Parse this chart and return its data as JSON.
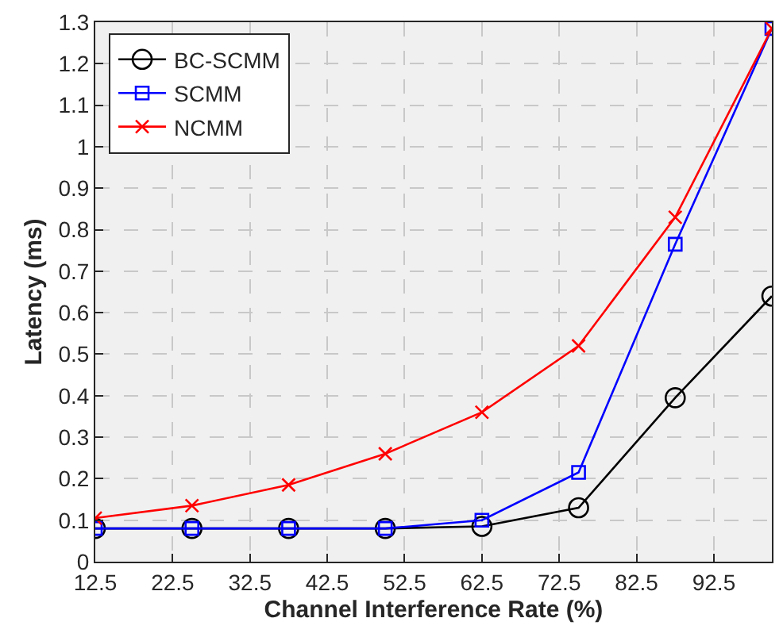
{
  "chart_data": {
    "type": "line",
    "xlabel": "Channel Interference Rate (%)",
    "ylabel": "Latency (ms)",
    "x": [
      12.5,
      25,
      37.5,
      50,
      62.5,
      75,
      87.5,
      100
    ],
    "series": [
      {
        "name": "BC-SCMM",
        "color": "#000000",
        "marker": "circle",
        "values": [
          0.08,
          0.08,
          0.08,
          0.08,
          0.085,
          0.13,
          0.395,
          0.64
        ]
      },
      {
        "name": "SCMM",
        "color": "#0000ff",
        "marker": "square",
        "values": [
          0.08,
          0.08,
          0.08,
          0.08,
          0.1,
          0.215,
          0.765,
          1.285
        ]
      },
      {
        "name": "NCMM",
        "color": "#ff0000",
        "marker": "cross",
        "values": [
          0.105,
          0.135,
          0.185,
          0.26,
          0.36,
          0.52,
          0.83,
          1.285
        ]
      }
    ],
    "xlim": [
      12.5,
      100
    ],
    "xticks": [
      12.5,
      22.5,
      32.5,
      42.5,
      52.5,
      62.5,
      72.5,
      82.5,
      92.5
    ],
    "ylim": [
      0,
      1.3
    ],
    "yticks": [
      0,
      0.1,
      0.2,
      0.3,
      0.4,
      0.5,
      0.6,
      0.7,
      0.8,
      0.9,
      1,
      1.1,
      1.2,
      1.3
    ],
    "grid": true,
    "legend": "top left",
    "line_style": "solid"
  }
}
